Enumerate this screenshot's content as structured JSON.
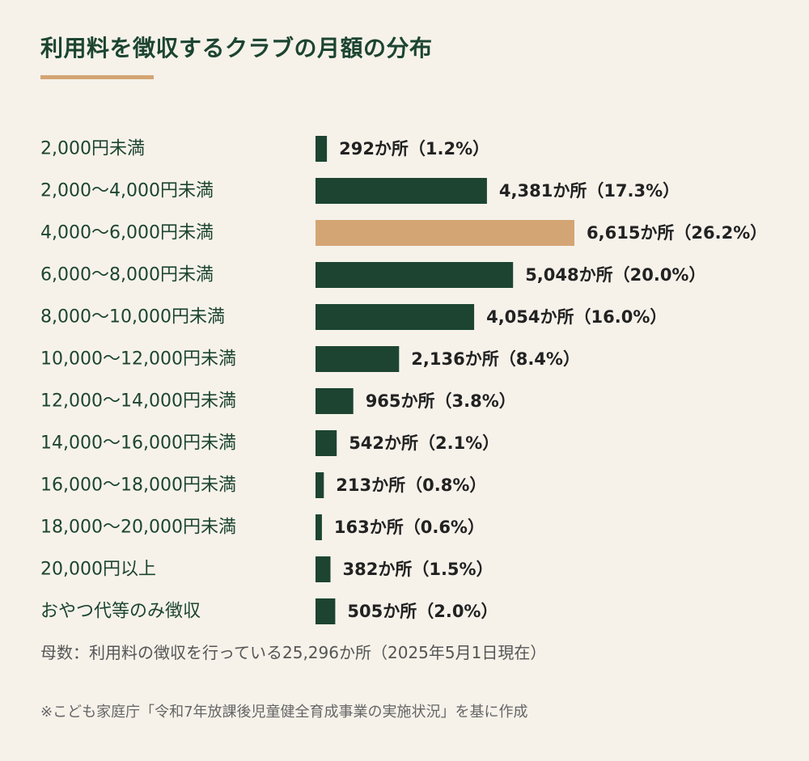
{
  "title": "利用料を徴収するクラブの月額の分布",
  "colors": {
    "background": "#f6f2ea",
    "bar": "#1c4431",
    "highlight": "#d4a574",
    "label": "#1d4530",
    "value": "#222222"
  },
  "chart_data": {
    "type": "bar",
    "orientation": "horizontal",
    "title": "利用料を徴収するクラブの月額の分布",
    "categories": [
      "2,000円未満",
      "2,000〜4,000円未満",
      "4,000〜6,000円未満",
      "6,000〜8,000円未満",
      "8,000〜10,000円未満",
      "10,000〜12,000円未満",
      "12,000〜14,000円未満",
      "14,000〜16,000円未満",
      "16,000〜18,000円未満",
      "18,000〜20,000円未満",
      "20,000円以上",
      "おやつ代等のみ徴収"
    ],
    "values": [
      292,
      4381,
      6615,
      5048,
      4054,
      2136,
      965,
      542,
      213,
      163,
      382,
      505
    ],
    "value_labels": [
      "292か所（1.2%）",
      "4,381か所（17.3%）",
      "6,615か所（26.2%）",
      "5,048か所（20.0%）",
      "4,054か所（16.0%）",
      "2,136か所（8.4%）",
      "965か所（3.8%）",
      "542か所（2.1%）",
      "213か所（0.8%）",
      "163か所（0.6%）",
      "382か所（1.5%）",
      "505か所（2.0%）"
    ],
    "highlight_index": 2,
    "xlim": [
      0,
      6615
    ],
    "grid": false
  },
  "footnotes": {
    "base": "母数：利用料の徴収を行っている25,296か所（2025年5月1日現在）",
    "source": "※こども家庭庁「令和7年放課後児童健全育成事業の実施状況」を基に作成"
  }
}
